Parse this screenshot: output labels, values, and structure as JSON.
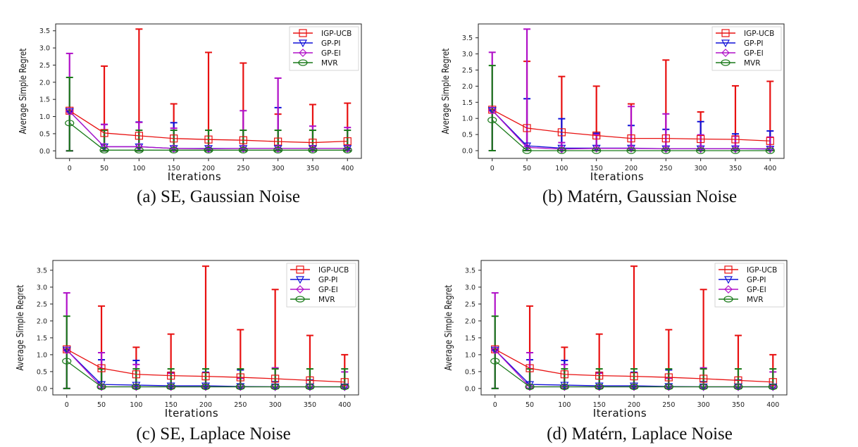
{
  "chart_data": [
    {
      "type": "line",
      "caption": "(a) SE, Gaussian Noise",
      "xlabel": "Iterations",
      "ylabel": "Average Simple Regret",
      "x": [
        0,
        50,
        100,
        150,
        200,
        250,
        300,
        350,
        400
      ],
      "xticks": [
        "0",
        "50",
        "100",
        "150",
        "200",
        "250",
        "300",
        "350",
        "400"
      ],
      "yticks": [
        "0.0",
        "0.5",
        "1.0",
        "1.5",
        "2.0",
        "2.5",
        "3.0",
        "3.5"
      ],
      "xlim": [
        -20,
        420
      ],
      "ylim": [
        -0.22,
        3.7
      ],
      "legend": "top-right",
      "series": [
        {
          "name": "IGP-UCB",
          "color": "#e81010",
          "marker": "square",
          "mean": [
            1.17,
            0.52,
            0.44,
            0.36,
            0.33,
            0.31,
            0.27,
            0.24,
            0.28
          ],
          "upper": [
            1.17,
            2.47,
            3.55,
            1.37,
            2.87,
            2.56,
            1.07,
            1.35,
            1.39
          ]
        },
        {
          "name": "GP-PI",
          "color": "#1010d8",
          "marker": "triangle-down",
          "mean": [
            1.15,
            0.12,
            0.12,
            0.07,
            0.07,
            0.07,
            0.07,
            0.07,
            0.07
          ],
          "upper": [
            1.15,
            0.77,
            0.84,
            0.82,
            0.07,
            0.07,
            1.26,
            0.07,
            0.07
          ]
        },
        {
          "name": "GP-EI",
          "color": "#b010c8",
          "marker": "diamond",
          "mean": [
            1.15,
            0.12,
            0.12,
            0.07,
            0.06,
            0.07,
            0.07,
            0.07,
            0.07
          ],
          "upper": [
            2.84,
            0.77,
            0.83,
            0.66,
            0.06,
            1.17,
            2.12,
            0.72,
            0.68
          ]
        },
        {
          "name": "MVR",
          "color": "#1a7a1a",
          "marker": "circle",
          "mean": [
            0.81,
            0.02,
            0.02,
            0.02,
            0.02,
            0.02,
            0.02,
            0.02,
            0.02
          ],
          "upper": [
            2.14,
            0.6,
            0.6,
            0.6,
            0.6,
            0.6,
            0.6,
            0.6,
            0.6
          ]
        }
      ]
    },
    {
      "type": "line",
      "caption": "(b) Matérn, Gaussian Noise",
      "xlabel": "Iterations",
      "ylabel": "Average Simple Regret",
      "x": [
        0,
        50,
        100,
        150,
        200,
        250,
        300,
        350,
        400
      ],
      "xticks": [
        "0",
        "50",
        "100",
        "150",
        "200",
        "250",
        "300",
        "350",
        "400"
      ],
      "yticks": [
        "0.0",
        "0.5",
        "1.0",
        "1.5",
        "2.0",
        "2.5",
        "3.0",
        "3.5"
      ],
      "xlim": [
        -20,
        420
      ],
      "ylim": [
        -0.24,
        3.93
      ],
      "legend": "top-right",
      "series": [
        {
          "name": "IGP-UCB",
          "color": "#e81010",
          "marker": "square",
          "mean": [
            1.27,
            0.7,
            0.57,
            0.47,
            0.38,
            0.38,
            0.36,
            0.35,
            0.3
          ],
          "upper": [
            1.27,
            2.77,
            2.3,
            2.0,
            1.45,
            2.81,
            1.2,
            2.01,
            2.15
          ]
        },
        {
          "name": "GP-PI",
          "color": "#1010d8",
          "marker": "triangle-down",
          "mean": [
            1.25,
            0.15,
            0.08,
            0.08,
            0.08,
            0.06,
            0.06,
            0.06,
            0.05
          ],
          "upper": [
            1.25,
            1.61,
            0.99,
            0.54,
            0.78,
            0.66,
            0.9,
            0.52,
            0.61
          ]
        },
        {
          "name": "GP-EI",
          "color": "#b010c8",
          "marker": "diamond",
          "mean": [
            1.25,
            0.1,
            0.05,
            0.07,
            0.07,
            0.06,
            0.06,
            0.06,
            0.06
          ],
          "upper": [
            3.05,
            3.77,
            0.25,
            0.5,
            1.37,
            1.14,
            0.49,
            0.45,
            0.42
          ]
        },
        {
          "name": "MVR",
          "color": "#1a7a1a",
          "marker": "circle",
          "mean": [
            0.95,
            0.0,
            0.0,
            0.0,
            0.0,
            0.0,
            0.0,
            0.0,
            0.0
          ],
          "upper": [
            2.64,
            0.0,
            0.0,
            0.0,
            0.0,
            0.0,
            0.0,
            0.0,
            0.0
          ]
        }
      ]
    },
    {
      "type": "line",
      "caption": "(c) SE, Laplace Noise",
      "xlabel": "Iterations",
      "ylabel": "Average Simple Regret",
      "x": [
        0,
        50,
        100,
        150,
        200,
        250,
        300,
        350,
        400
      ],
      "xticks": [
        "0",
        "50",
        "100",
        "150",
        "200",
        "250",
        "300",
        "350",
        "400"
      ],
      "yticks": [
        "0.0",
        "0.5",
        "1.0",
        "1.5",
        "2.0",
        "2.5",
        "3.0",
        "3.5"
      ],
      "xlim": [
        -20,
        420
      ],
      "ylim": [
        -0.19,
        3.79
      ],
      "legend": "top-right",
      "series": [
        {
          "name": "IGP-UCB",
          "color": "#e81010",
          "marker": "square",
          "mean": [
            1.16,
            0.6,
            0.42,
            0.38,
            0.36,
            0.33,
            0.29,
            0.24,
            0.19
          ],
          "upper": [
            1.16,
            2.44,
            1.22,
            1.61,
            3.62,
            1.74,
            2.93,
            1.57,
            1.0
          ]
        },
        {
          "name": "GP-PI",
          "color": "#1010d8",
          "marker": "triangle-down",
          "mean": [
            1.14,
            0.12,
            0.1,
            0.08,
            0.08,
            0.06,
            0.05,
            0.05,
            0.05
          ],
          "upper": [
            1.14,
            0.85,
            0.83,
            0.48,
            0.48,
            0.55,
            0.2,
            0.25,
            0.12
          ]
        },
        {
          "name": "GP-EI",
          "color": "#b010c8",
          "marker": "diamond",
          "mean": [
            1.14,
            0.05,
            0.05,
            0.05,
            0.05,
            0.05,
            0.05,
            0.05,
            0.05
          ],
          "upper": [
            2.83,
            1.06,
            0.71,
            0.45,
            0.05,
            0.3,
            0.61,
            0.05,
            0.49
          ]
        },
        {
          "name": "MVR",
          "color": "#1a7a1a",
          "marker": "circle",
          "mean": [
            0.81,
            0.05,
            0.05,
            0.05,
            0.05,
            0.05,
            0.05,
            0.05,
            0.05
          ],
          "upper": [
            2.14,
            0.58,
            0.58,
            0.58,
            0.58,
            0.58,
            0.58,
            0.58,
            0.58
          ]
        }
      ]
    },
    {
      "type": "line",
      "caption": "(d) Matérn, Laplace Noise",
      "xlabel": "Iterations",
      "ylabel": "Average Simple Regret",
      "x": [
        0,
        50,
        100,
        150,
        200,
        250,
        300,
        350,
        400
      ],
      "xticks": [
        "0",
        "50",
        "100",
        "150",
        "200",
        "250",
        "300",
        "350",
        "400"
      ],
      "yticks": [
        "0.0",
        "0.5",
        "1.0",
        "1.5",
        "2.0",
        "2.5",
        "3.0",
        "3.5"
      ],
      "xlim": [
        -20,
        420
      ],
      "ylim": [
        -0.19,
        3.79
      ],
      "legend": "top-right",
      "series": [
        {
          "name": "IGP-UCB",
          "color": "#e81010",
          "marker": "square",
          "mean": [
            1.16,
            0.6,
            0.42,
            0.38,
            0.36,
            0.33,
            0.29,
            0.24,
            0.19
          ],
          "upper": [
            1.16,
            2.44,
            1.22,
            1.61,
            3.62,
            1.74,
            2.93,
            1.57,
            1.0
          ]
        },
        {
          "name": "GP-PI",
          "color": "#1010d8",
          "marker": "triangle-down",
          "mean": [
            1.14,
            0.12,
            0.1,
            0.08,
            0.08,
            0.06,
            0.05,
            0.05,
            0.05
          ],
          "upper": [
            1.14,
            0.85,
            0.83,
            0.48,
            0.48,
            0.55,
            0.2,
            0.25,
            0.12
          ]
        },
        {
          "name": "GP-EI",
          "color": "#b010c8",
          "marker": "diamond",
          "mean": [
            1.14,
            0.05,
            0.05,
            0.05,
            0.05,
            0.05,
            0.05,
            0.05,
            0.05
          ],
          "upper": [
            2.83,
            1.06,
            0.71,
            0.45,
            0.05,
            0.3,
            0.61,
            0.05,
            0.49
          ]
        },
        {
          "name": "MVR",
          "color": "#1a7a1a",
          "marker": "circle",
          "mean": [
            0.81,
            0.05,
            0.05,
            0.05,
            0.05,
            0.05,
            0.05,
            0.05,
            0.05
          ],
          "upper": [
            2.14,
            0.58,
            0.58,
            0.58,
            0.58,
            0.58,
            0.58,
            0.58,
            0.58
          ]
        }
      ]
    }
  ]
}
